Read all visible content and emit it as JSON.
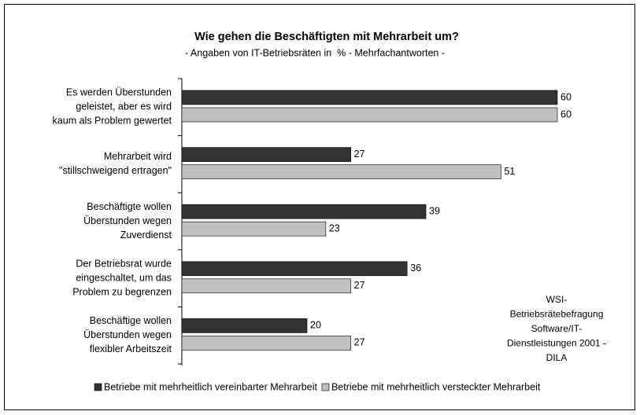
{
  "chart_data": {
    "type": "bar",
    "orientation": "horizontal",
    "title": "Wie gehen die Beschäftigten mit Mehrarbeit um?",
    "subtitle": "- Angaben von IT-Betriebsräten in  % - Mehrfachantworten -",
    "categories": [
      [
        "Es werden Überstunden",
        "geleistet, aber es wird",
        "kaum als Problem gewertet"
      ],
      [
        "Mehrarbeit wird",
        "\"stillschweigend ertragen\""
      ],
      [
        "Beschäftigte wollen",
        "Überstunden wegen",
        "Zuverdienst"
      ],
      [
        "Der Betriebsrat wurde",
        "eingeschaltet, um das",
        "Problem zu begrenzen"
      ],
      [
        "Beschäftige wollen",
        "Überstunden wegen",
        "flexibler Arbeitszeit"
      ]
    ],
    "series": [
      {
        "name": "Betriebe mit mehrheitlich vereinbarter Mehrarbeit",
        "color": "#333333",
        "values": [
          60,
          27,
          39,
          36,
          20
        ]
      },
      {
        "name": "Betriebe mit mehrheitlich versteckter Mehrarbeit",
        "color": "#c0c0c0",
        "values": [
          60,
          51,
          23,
          27,
          27
        ]
      }
    ],
    "annotation": [
      "WSI-",
      "Betriebsrätebefragung",
      "Software/IT-",
      "Dienstleistungen 2001 -",
      "DILA"
    ],
    "legend": "bottom"
  }
}
